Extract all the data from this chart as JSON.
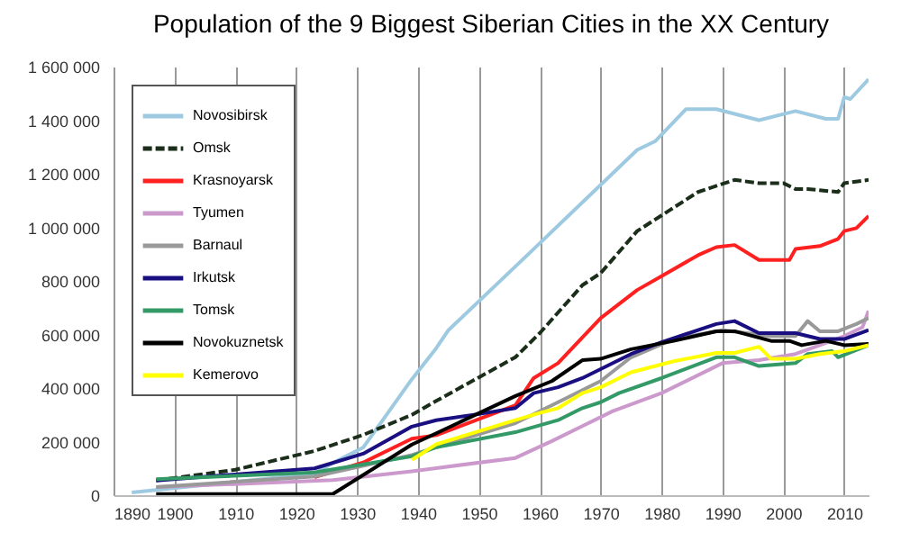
{
  "chart_data": {
    "type": "line",
    "title": "Population of the 9 Biggest Siberian Cities in the XX Century",
    "xlim": [
      1890,
      2014
    ],
    "ylim": [
      0,
      1600000
    ],
    "xticks": [
      1890,
      1900,
      1910,
      1920,
      1930,
      1940,
      1950,
      1960,
      1970,
      1980,
      1990,
      2000,
      2010
    ],
    "yticks": [
      0,
      {
        "value": 200000,
        "label": "200 000"
      },
      {
        "value": 400000,
        "label": "400 000"
      },
      {
        "value": 600000,
        "label": "600 000"
      },
      {
        "value": 800000,
        "label": "800 000"
      },
      {
        "value": 1000000,
        "label": "1 000 000"
      },
      {
        "value": 1200000,
        "label": "1 200 000"
      },
      {
        "value": 1400000,
        "label": "1 400 000"
      },
      {
        "value": 1600000,
        "label": "1 600 000"
      }
    ],
    "grid": "x",
    "legend": "top left",
    "series": [
      {
        "name": "Novosibirsk",
        "color": "#9ecae1",
        "line_style": "solid",
        "x": [
          1893,
          1910,
          1923,
          1926,
          1931,
          1939,
          1943,
          1945,
          1959,
          1976,
          1979,
          1984,
          1989,
          1996,
          2002,
          2007,
          2009,
          2010,
          2011,
          2014
        ],
        "values": [
          10000,
          50000,
          80000,
          120000,
          178000,
          433000,
          549000,
          616000,
          919000,
          1289000,
          1322000,
          1441000,
          1441000,
          1400000,
          1434000,
          1405000,
          1405000,
          1486000,
          1479000,
          1553000
        ]
      },
      {
        "name": "Omsk",
        "color": "#1a2e1a",
        "line_style": "dashed",
        "x": [
          1897,
          1910,
          1923,
          1931,
          1939,
          1943,
          1956,
          1960,
          1967,
          1970,
          1976,
          1986,
          1992,
          1996,
          2000,
          2002,
          2004,
          2009,
          2010,
          2014
        ],
        "values": [
          55000,
          95000,
          165000,
          225000,
          300000,
          352000,
          515000,
          605000,
          784000,
          829000,
          986000,
          1132000,
          1177000,
          1165000,
          1165000,
          1143000,
          1143000,
          1132000,
          1165000,
          1177000
        ]
      },
      {
        "name": "Krasnoyarsk",
        "color": "#ff2020",
        "line_style": "solid",
        "x": [
          1923,
          1931,
          1939,
          1943,
          1956,
          1959,
          1963,
          1970,
          1976,
          1980,
          1986,
          1989,
          1992,
          1996,
          2001,
          2002,
          2006,
          2009,
          2010,
          2012,
          2014
        ],
        "values": [
          67000,
          122000,
          211000,
          224000,
          336000,
          437000,
          493000,
          661000,
          766000,
          818000,
          896000,
          926000,
          934000,
          878000,
          878000,
          919000,
          930000,
          957000,
          986000,
          997000,
          1042000
        ]
      },
      {
        "name": "Tyumen",
        "color": "#cc99cc",
        "line_style": "solid",
        "x": [
          1897,
          1926,
          1939,
          1943,
          1956,
          1962,
          1967,
          1972,
          1980,
          1990,
          1996,
          2002,
          2006,
          2010,
          2013,
          2014
        ],
        "values": [
          30000,
          56000,
          89000,
          101000,
          139000,
          202000,
          258000,
          314000,
          381000,
          493000,
          504000,
          527000,
          560000,
          594000,
          627000,
          688000
        ]
      },
      {
        "name": "Barnaul",
        "color": "#999999",
        "line_style": "solid",
        "x": [
          1897,
          1923,
          1939,
          1943,
          1956,
          1963,
          1970,
          1975,
          1982,
          1990,
          1998,
          2002,
          2004,
          2006,
          2009,
          2012,
          2014
        ],
        "values": [
          30000,
          70000,
          150000,
          179000,
          269000,
          347000,
          426000,
          515000,
          583000,
          616000,
          594000,
          594000,
          650000,
          612000,
          612000,
          639000,
          661000
        ]
      },
      {
        "name": "Irkutsk",
        "color": "#1a0f80",
        "line_style": "solid",
        "x": [
          1897,
          1923,
          1931,
          1939,
          1943,
          1950,
          1956,
          1959,
          1963,
          1967,
          1975,
          1980,
          1989,
          1992,
          1996,
          2002,
          2006,
          2010,
          2014
        ],
        "values": [
          55000,
          100000,
          155000,
          256000,
          280000,
          303000,
          325000,
          381000,
          403000,
          437000,
          527000,
          571000,
          639000,
          650000,
          605000,
          605000,
          583000,
          583000,
          616000
        ]
      },
      {
        "name": "Tomsk",
        "color": "#339966",
        "line_style": "solid",
        "x": [
          1897,
          1923,
          1939,
          1943,
          1956,
          1963,
          1967,
          1970,
          1973,
          1980,
          1989,
          1992,
          1996,
          2002,
          2004,
          2008,
          2009,
          2014
        ],
        "values": [
          60000,
          85000,
          145000,
          179000,
          235000,
          280000,
          325000,
          347000,
          381000,
          437000,
          515000,
          515000,
          482000,
          493000,
          527000,
          538000,
          515000,
          560000
        ]
      },
      {
        "name": "Novokuznetsk",
        "color": "#000000",
        "line_style": "solid",
        "x": [
          1897,
          1926,
          1939,
          1943,
          1956,
          1962,
          1967,
          1970,
          1975,
          1982,
          1989,
          1992,
          1998,
          2001,
          2003,
          2007,
          2010,
          2014
        ],
        "values": [
          4000,
          4000,
          189000,
          231000,
          370000,
          426000,
          504000,
          509000,
          545000,
          576000,
          612000,
          612000,
          576000,
          576000,
          560000,
          576000,
          560000,
          565000
        ]
      },
      {
        "name": "Kemerovo",
        "color": "#ffff00",
        "line_style": "solid",
        "x": [
          1939,
          1943,
          1956,
          1960,
          1963,
          1967,
          1970,
          1975,
          1982,
          1989,
          1992,
          1996,
          1998,
          2002,
          2006,
          2010,
          2014
        ],
        "values": [
          132000,
          190000,
          280000,
          307000,
          325000,
          381000,
          403000,
          459000,
          500000,
          531000,
          531000,
          554000,
          509000,
          509000,
          527000,
          538000,
          560000
        ]
      }
    ]
  }
}
